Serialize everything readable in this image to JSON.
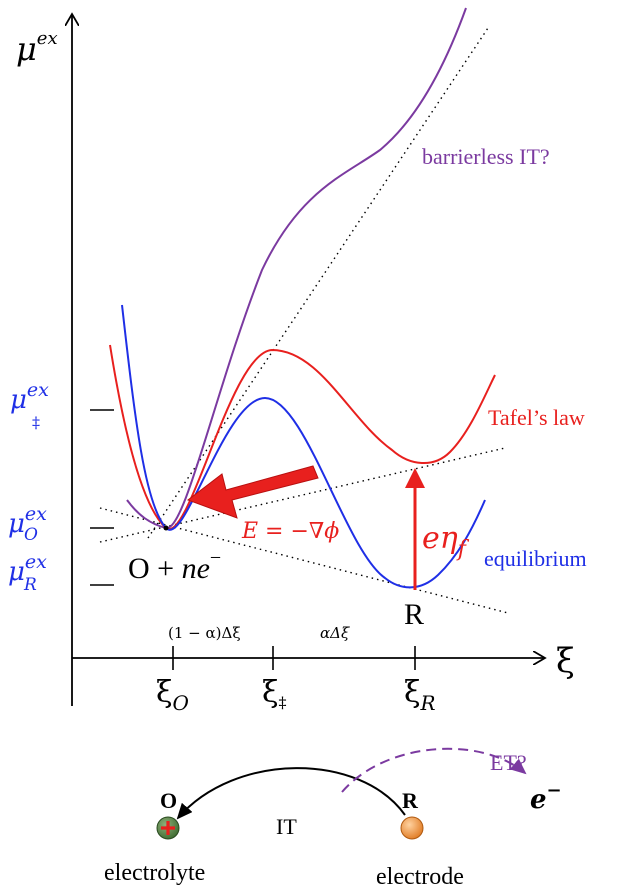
{
  "colors": {
    "axis": "#000000",
    "barrierless": "#7b3aa0",
    "tafel": "#e8201e",
    "equilibrium": "#1f2fe6",
    "mu_labels": "#1f2fe6",
    "arrow": "#e8201e",
    "et": "#7b3aa0",
    "ion_O": "#4a7a3a",
    "ion_R": "#e8862a"
  },
  "axes": {
    "y_label_main": "μ",
    "y_label_sup": "ex",
    "x_label": "ξ"
  },
  "y_ticks": {
    "ts": {
      "main": "μ",
      "sup": "ex",
      "sub": "‡"
    },
    "O": {
      "main": "μ",
      "sup": "ex",
      "sub": "O"
    },
    "R": {
      "main": "μ",
      "sup": "ex",
      "sub": "R"
    }
  },
  "x_ticks": {
    "O": {
      "main": "ξ",
      "sub": "O"
    },
    "ts": {
      "main": "ξ",
      "sub": "‡"
    },
    "R": {
      "main": "ξ",
      "sub": "R"
    }
  },
  "segments": {
    "left": "(1 − α)Δξ",
    "right": "αΔξ"
  },
  "curve_labels": {
    "barrierless": "barrierless IT?",
    "tafel": "Tafel’s law",
    "equilibrium": "equilibrium"
  },
  "annotations": {
    "field": "E = −∇ϕ",
    "overpotential_main": "eη",
    "overpotential_sub": "f",
    "state_O_prefix": "O + ",
    "state_O_ne": "ne",
    "state_O_sup": "−",
    "state_R": "R"
  },
  "bottom": {
    "O_label": "O",
    "R_label": "R",
    "IT_label": "IT",
    "ET_label": "ET?",
    "electron_main": "e",
    "electron_sup": "−",
    "electrolyte": "electrolyte",
    "electrode": "electrode"
  }
}
